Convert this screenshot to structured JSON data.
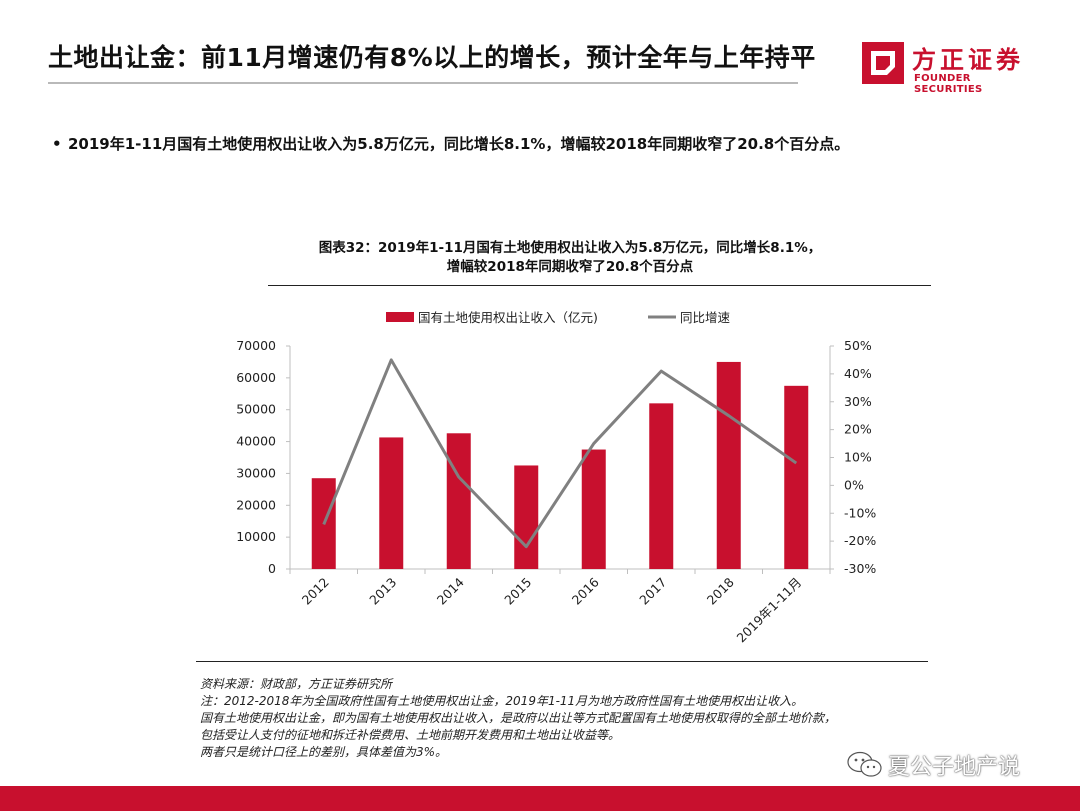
{
  "header": {
    "title": "土地出让金：前11月增速仍有8%以上的增长，预计全年与上年持平",
    "logo_cn": "方正证券",
    "logo_en": "FOUNDER SECURITIES"
  },
  "bullet": {
    "marker": "•",
    "text": "2019年1-11月国有土地使用权出让收入为5.8万亿元，同比增长8.1%，增幅较2018年同期收窄了20.8个百分点。"
  },
  "chart_title_line1": "图表32：2019年1-11月国有土地使用权出让收入为5.8万亿元，同比增长8.1%，",
  "chart_title_line2": "增幅较2018年同期收窄了20.8个百分点",
  "chart_data": {
    "type": "bar+line",
    "categories": [
      "2012",
      "2013",
      "2014",
      "2015",
      "2016",
      "2017",
      "2018",
      "2019年1-11月"
    ],
    "series": [
      {
        "name": "国有土地使用权出让收入（亿元)",
        "type": "bar",
        "axis": "left",
        "color": "#c8102e",
        "values": [
          28500,
          41300,
          42600,
          32500,
          37500,
          52000,
          65000,
          57500
        ]
      },
      {
        "name": "同比增速",
        "type": "line",
        "axis": "right",
        "color": "#808080",
        "values": [
          -14,
          45,
          3,
          -22,
          15,
          41,
          25,
          8
        ]
      }
    ],
    "y_left": {
      "min": 0,
      "max": 70000,
      "ticks": [
        0,
        10000,
        20000,
        30000,
        40000,
        50000,
        60000,
        70000
      ]
    },
    "y_right": {
      "min": -30,
      "max": 50,
      "ticks": [
        "-30%",
        "-20%",
        "-10%",
        "0%",
        "10%",
        "20%",
        "30%",
        "40%",
        "50%"
      ]
    },
    "legend_position": "top",
    "grid": false
  },
  "notes": [
    "资料来源：财政部，方正证券研究所",
    "注：2012-2018年为全国政府性国有土地使用权出让金，2019年1-11月为地方政府性国有土地使用权出让收入。",
    "国有土地使用权出让金，即为国有土地使用权出让收入，是政府以出让等方式配置国有土地使用权取得的全部土地价款，",
    "包括受让人支付的征地和拆迁补偿费用、土地前期开发费用和土地出让收益等。",
    "两者只是统计口径上的差别，具体差值为3%。"
  ],
  "watermark": {
    "text": "夏公子地产说"
  },
  "colors": {
    "brand_red": "#c8102e",
    "line_gray": "#808080"
  }
}
